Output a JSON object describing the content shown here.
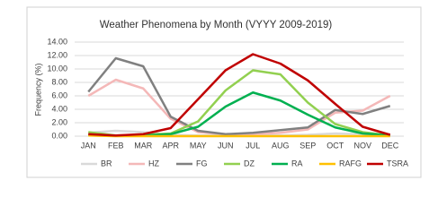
{
  "chart_data": {
    "type": "line",
    "title": "Weather Phenomena by Month (VYYY 2009-2019)",
    "y_label": "Frequency (%)",
    "categories": [
      "JAN",
      "FEB",
      "MAR",
      "APR",
      "MAY",
      "JUN",
      "JUL",
      "AUG",
      "SEP",
      "OCT",
      "NOV",
      "DEC"
    ],
    "series": [
      {
        "name": "BR",
        "color": "#d9d9d9",
        "values": [
          0.5,
          0.8,
          0.6,
          0.2,
          0.1,
          0.1,
          0.1,
          0.1,
          0.2,
          0.4,
          0.3,
          0.3
        ]
      },
      {
        "name": "HZ",
        "color": "#f4b8b8",
        "values": [
          6.0,
          8.4,
          7.1,
          2.6,
          0.6,
          0.3,
          0.3,
          0.5,
          1.0,
          3.5,
          3.8,
          6.0
        ]
      },
      {
        "name": "FG",
        "color": "#808080",
        "values": [
          6.6,
          11.6,
          10.4,
          2.9,
          0.8,
          0.3,
          0.5,
          0.9,
          1.3,
          3.9,
          3.3,
          4.5
        ]
      },
      {
        "name": "DZ",
        "color": "#92d050",
        "values": [
          0.6,
          0.1,
          0.2,
          0.4,
          2.2,
          6.8,
          9.8,
          9.2,
          5.0,
          1.8,
          0.6,
          0.1
        ]
      },
      {
        "name": "RA",
        "color": "#00b050",
        "values": [
          0.2,
          0.1,
          0.1,
          0.3,
          1.4,
          4.4,
          6.5,
          5.3,
          3.2,
          1.3,
          0.4,
          0.1
        ]
      },
      {
        "name": "RAFG",
        "color": "#ffc000",
        "values": [
          0.1,
          0,
          0,
          0,
          0,
          0,
          0,
          0,
          0,
          0,
          0,
          0
        ]
      },
      {
        "name": "TSRA",
        "color": "#c00000",
        "values": [
          0.3,
          0.1,
          0.3,
          1.2,
          5.5,
          9.8,
          12.2,
          10.8,
          8.3,
          4.8,
          1.4,
          0.2
        ]
      }
    ],
    "ylim": [
      0,
      14
    ],
    "yticks": [
      {
        "value": 0,
        "label": "0.00"
      },
      {
        "value": 2,
        "label": "2.00"
      },
      {
        "value": 4,
        "label": "4.00"
      },
      {
        "value": 6,
        "label": "6.00"
      },
      {
        "value": 8,
        "label": "8.00"
      },
      {
        "value": 10,
        "label": "10.00"
      },
      {
        "value": 12,
        "label": "12.00"
      },
      {
        "value": 14,
        "label": "14.00"
      }
    ],
    "grid": true,
    "legend": "bottom"
  }
}
